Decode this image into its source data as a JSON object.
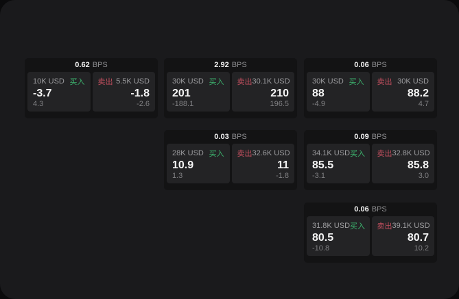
{
  "window": {
    "background": "#0b0b0c",
    "panel_background": "#1a1a1c"
  },
  "colors": {
    "buy_green": "#3cb46e",
    "sell_red": "#c44f5f",
    "card_background": "#131314",
    "tile_background": "#232325",
    "value_white": "#f5f5f5",
    "label_gray": "#9d9da0"
  },
  "cards": [
    {
      "spread": "0.62",
      "spread_unit": "BPS",
      "buy": {
        "amount": "10K USD",
        "label": "买入",
        "price": "-3.7",
        "change": "4.3"
      },
      "sell": {
        "label": "卖出",
        "amount": "5.5K USD",
        "price": "-1.8",
        "change": "-2.6"
      }
    },
    {
      "spread": "2.92",
      "spread_unit": "BPS",
      "buy": {
        "amount": "30K USD",
        "label": "买入",
        "price": "201",
        "change": "-188.1"
      },
      "sell": {
        "label": "卖出",
        "amount": "30.1K USD",
        "price": "210",
        "change": "196.5"
      }
    },
    {
      "spread": "0.06",
      "spread_unit": "BPS",
      "buy": {
        "amount": "30K USD",
        "label": "买入",
        "price": "88",
        "change": "-4.9"
      },
      "sell": {
        "label": "卖出",
        "amount": "30K USD",
        "price": "88.2",
        "change": "4.7"
      }
    },
    {
      "spread": "0.03",
      "spread_unit": "BPS",
      "buy": {
        "amount": "28K USD",
        "label": "买入",
        "price": "10.9",
        "change": "1.3"
      },
      "sell": {
        "label": "卖出",
        "amount": "32.6K USD",
        "price": "11",
        "change": "-1.8"
      }
    },
    {
      "spread": "0.09",
      "spread_unit": "BPS",
      "buy": {
        "amount": "34.1K USD",
        "label": "买入",
        "price": "85.5",
        "change": "-3.1"
      },
      "sell": {
        "label": "卖出",
        "amount": "32.8K USD",
        "price": "85.8",
        "change": "3.0"
      }
    },
    {
      "spread": "0.06",
      "spread_unit": "BPS",
      "buy": {
        "amount": "31.8K USD",
        "label": "买入",
        "price": "80.5",
        "change": "-10.8"
      },
      "sell": {
        "label": "卖出",
        "amount": "39.1K USD",
        "price": "80.7",
        "change": "10.2"
      }
    }
  ]
}
